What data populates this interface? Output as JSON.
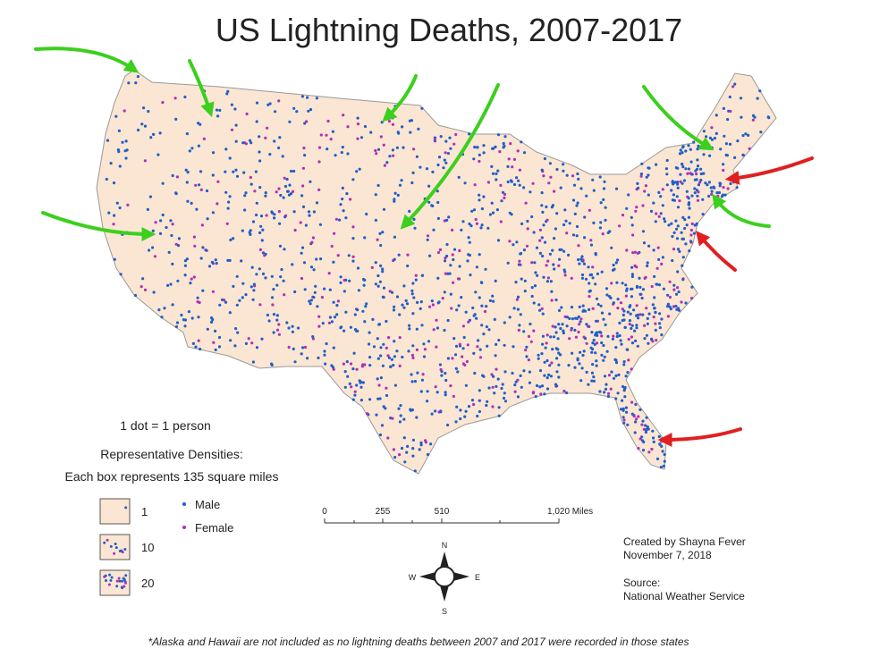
{
  "title": "US Lightning Deaths, 2007-2017",
  "legend": {
    "dot_note": "1 dot = 1 person",
    "densities_title": "Representative Densities:",
    "densities_note": "Each box represents 135 square miles",
    "boxes": [
      1,
      10,
      20
    ],
    "male": "Male",
    "female": "Female",
    "male_color": "#1f5fc8",
    "female_color": "#b02fb5"
  },
  "scale": [
    "0",
    "255",
    "510",
    "1,020 Miles"
  ],
  "compass": {
    "n": "N",
    "s": "S",
    "e": "E",
    "w": "W"
  },
  "credits": {
    "created": "Created by Shayna Fever",
    "date": "November 7, 2018",
    "source_label": "Source:",
    "source": "National Weather Service"
  },
  "footnote": "*Alaska and Hawaii are not included as no lightning deaths between 2007 and 2017 were recorded in those states"
}
